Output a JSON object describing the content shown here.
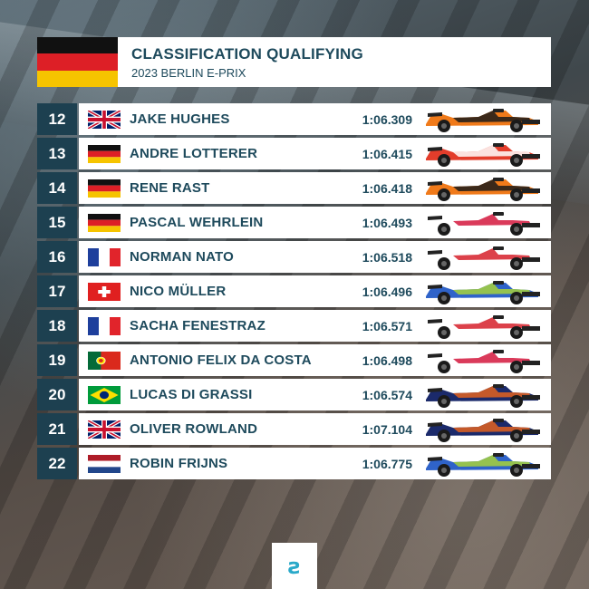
{
  "header": {
    "title": "CLASSIFICATION QUALIFYING",
    "subtitle": "2023 BERLIN E-PRIX",
    "flag": "germany-flag"
  },
  "colors": {
    "navy": "#1d4050",
    "text": "#1e4a5c",
    "accent": "#2aa9c9"
  },
  "results": [
    {
      "pos": "12",
      "flag": "uk-flag",
      "name": "JAKE HUGHES",
      "time": "1:06.309",
      "car": "mclaren-car-icon",
      "car_colors": [
        "#f07a1a",
        "#1b1b1b"
      ]
    },
    {
      "pos": "13",
      "flag": "germany-flag",
      "name": "ANDRE LOTTERER",
      "time": "1:06.415",
      "car": "porsche-car-icon",
      "car_colors": [
        "#e33d2b",
        "#ffffff"
      ]
    },
    {
      "pos": "14",
      "flag": "germany-flag",
      "name": "RENE RAST",
      "time": "1:06.418",
      "car": "mclaren-car-icon",
      "car_colors": [
        "#f07a1a",
        "#1b1b1b"
      ]
    },
    {
      "pos": "15",
      "flag": "germany-flag",
      "name": "PASCAL WEHRLEIN",
      "time": "1:06.493",
      "car": "porsche-car-icon",
      "car_colors": [
        "#ffffff",
        "#d4183d"
      ]
    },
    {
      "pos": "16",
      "flag": "france-flag",
      "name": "NORMAN NATO",
      "time": "1:06.518",
      "car": "nissan-car-icon",
      "car_colors": [
        "#ffffff",
        "#d6202a"
      ]
    },
    {
      "pos": "17",
      "flag": "switzerland-flag",
      "name": "NICO MÜLLER",
      "time": "1:06.496",
      "car": "abt-car-icon",
      "car_colors": [
        "#2f63c9",
        "#a7d23a"
      ]
    },
    {
      "pos": "18",
      "flag": "france-flag",
      "name": "SACHA FENESTRAZ",
      "time": "1:06.571",
      "car": "nissan-car-icon",
      "car_colors": [
        "#ffffff",
        "#d6202a"
      ]
    },
    {
      "pos": "19",
      "flag": "portugal-flag",
      "name": "ANTONIO FELIX DA COSTA",
      "time": "1:06.498",
      "car": "porsche-car-icon",
      "car_colors": [
        "#ffffff",
        "#d4183d"
      ]
    },
    {
      "pos": "20",
      "flag": "brazil-flag",
      "name": "LUCAS DI GRASSI",
      "time": "1:06.574",
      "car": "mahindra-car-icon",
      "car_colors": [
        "#1b2a6b",
        "#e2611e"
      ]
    },
    {
      "pos": "21",
      "flag": "uk-flag",
      "name": "OLIVER ROWLAND",
      "time": "1:07.104",
      "car": "mahindra-car-icon",
      "car_colors": [
        "#1b2a6b",
        "#e2611e"
      ]
    },
    {
      "pos": "22",
      "flag": "netherlands-flag",
      "name": "ROBIN FRIJNS",
      "time": "1:06.775",
      "car": "abt-car-icon",
      "car_colors": [
        "#2f63c9",
        "#a7d23a"
      ]
    }
  ],
  "footer": {
    "logo_text": "ƨ",
    "logo": "formula-e-logo"
  }
}
